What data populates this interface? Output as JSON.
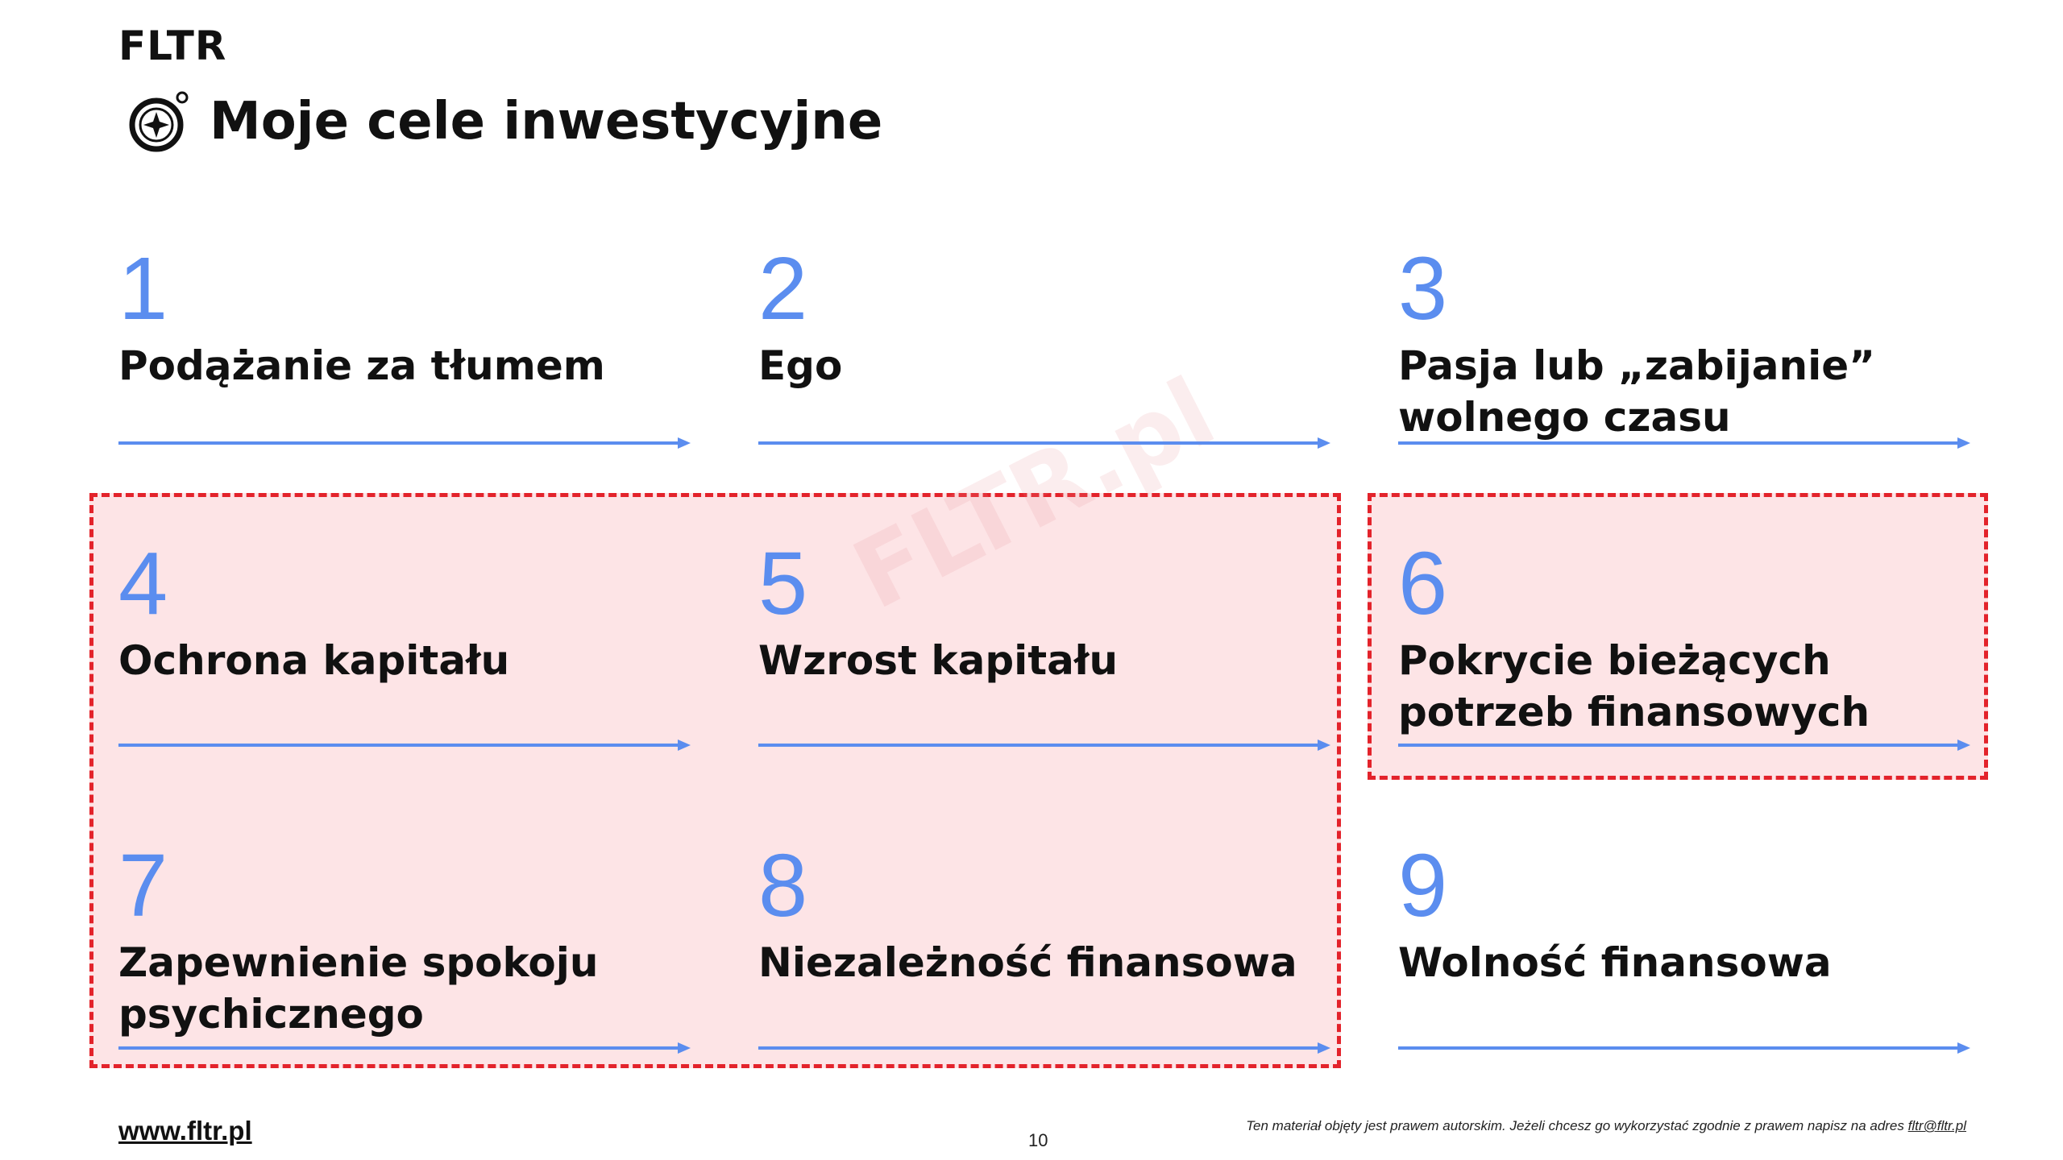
{
  "header": {
    "brand": "FLTR",
    "title": "Moje cele inwestycyjne",
    "title_icon": "compass-icon"
  },
  "watermark": "FLTR.pl",
  "colors": {
    "accent_blue": "#5b8def",
    "highlight_fill": "#fde4e6",
    "highlight_border": "#e3232b"
  },
  "goals": [
    {
      "number": "1",
      "label": "Podążanie za tłumem"
    },
    {
      "number": "2",
      "label": "Ego"
    },
    {
      "number": "3",
      "label": "Pasja lub „zabijanie” wolnego czasu"
    },
    {
      "number": "4",
      "label": "Ochrona kapitału"
    },
    {
      "number": "5",
      "label": "Wzrost kapitału"
    },
    {
      "number": "6",
      "label": "Pokrycie bieżących potrzeb finansowych"
    },
    {
      "number": "7",
      "label": "Zapewnienie spokoju psychicznego"
    },
    {
      "number": "8",
      "label": "Niezależność finansowa"
    },
    {
      "number": "9",
      "label": "Wolność finansowa"
    }
  ],
  "footer": {
    "url": "www.fltr.pl",
    "page_number": "10",
    "copyright": "Ten materiał objęty jest prawem autorskim. Jeżeli chcesz go wykorzystać zgodnie z prawem napisz na adres",
    "email": "fltr@fltr.pl"
  }
}
